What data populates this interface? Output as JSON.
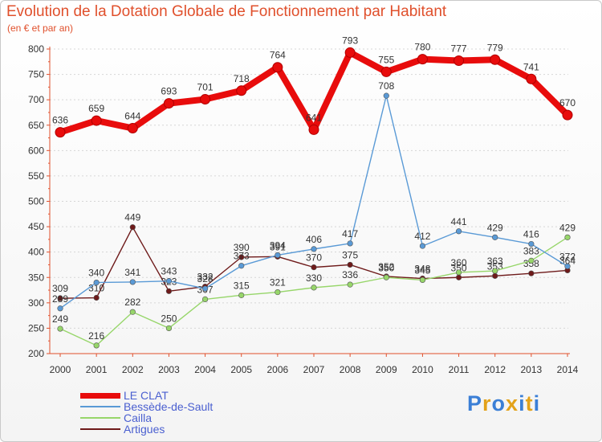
{
  "chart_data": {
    "type": "line",
    "title": "Evolution de la Dotation Globale de Fonctionnement par Habitant",
    "subtitle": "(en € et par an)",
    "xlabel": "",
    "ylabel": "",
    "ylim": [
      200,
      800
    ],
    "yticks": [
      200,
      250,
      300,
      350,
      400,
      450,
      500,
      550,
      600,
      650,
      700,
      750,
      800
    ],
    "x": [
      "2000",
      "2001",
      "2002",
      "2003",
      "2004",
      "2005",
      "2006",
      "2007",
      "2008",
      "2009",
      "2010",
      "2011",
      "2012",
      "2013",
      "2014"
    ],
    "grid": "horizontal dashed",
    "legend": "bottom-left",
    "series": [
      {
        "name": "Artigues",
        "color": "#6e1a1a",
        "values": [
          309,
          310,
          449,
          323,
          332,
          390,
          391,
          370,
          375,
          352,
          348,
          350,
          353,
          358,
          364
        ]
      },
      {
        "name": "Cailla",
        "color": "#97d66a",
        "values": [
          249,
          216,
          282,
          250,
          307,
          315,
          321,
          330,
          336,
          350,
          345,
          360,
          363,
          383,
          429
        ]
      },
      {
        "name": "Bessède-de-Sault",
        "color": "#5a9ad6",
        "values": [
          289,
          340,
          341,
          343,
          328,
          373,
          394,
          406,
          417,
          708,
          412,
          441,
          429,
          416,
          372
        ]
      },
      {
        "name": "LE CLAT",
        "color": "#e80c0c",
        "values": [
          636,
          659,
          644,
          693,
          701,
          718,
          764,
          641,
          793,
          755,
          780,
          777,
          779,
          741,
          670
        ]
      }
    ]
  },
  "legend_items": [
    {
      "name": "LE CLAT",
      "color": "#e80c0c"
    },
    {
      "name": "Bessède-de-Sault",
      "color": "#5a9ad6"
    },
    {
      "name": "Cailla",
      "color": "#97d66a"
    },
    {
      "name": "Artigues",
      "color": "#6e1a1a"
    }
  ],
  "logo": {
    "text": "Proxiti",
    "letters": [
      "P",
      "r",
      "o",
      "x",
      "i",
      "t",
      "i"
    ],
    "colors": [
      "#3b7fd6",
      "#e3a21a",
      "#3b7fd6",
      "#e3a21a",
      "#3b7fd6",
      "#e3a21a",
      "#3b7fd6"
    ]
  }
}
